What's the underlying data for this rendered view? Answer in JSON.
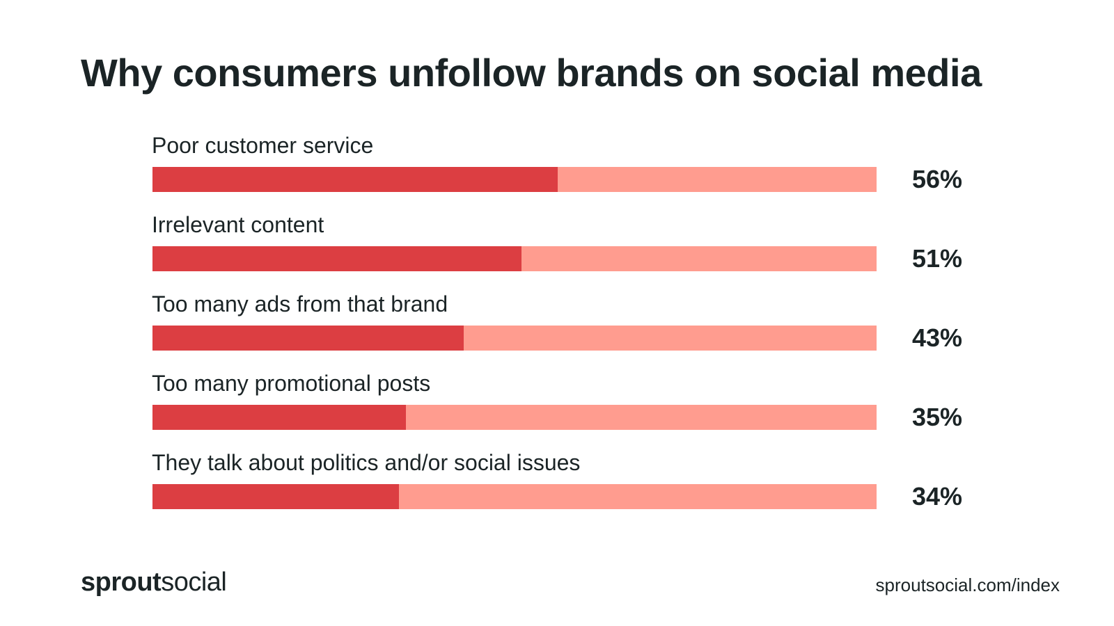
{
  "title": "Why consumers unfollow brands on social media",
  "colors": {
    "bar_fill": "#dc3e42",
    "bar_track": "#ff9c8f",
    "text": "#1b2426"
  },
  "chart_data": {
    "type": "bar",
    "orientation": "horizontal",
    "title": "Why consumers unfollow brands on social media",
    "categories": [
      "Poor customer service",
      "Irrelevant content",
      "Too many ads from that brand",
      "Too many promotional posts",
      "They talk about politics and/or social issues"
    ],
    "values": [
      56,
      51,
      43,
      35,
      34
    ],
    "value_labels": [
      "56%",
      "51%",
      "43%",
      "35%",
      "34%"
    ],
    "xlim": [
      0,
      100
    ],
    "grid": false,
    "legend": "none"
  },
  "footer": {
    "brand_bold": "sprout",
    "brand_light": "social",
    "source": "sproutsocial.com/index"
  }
}
